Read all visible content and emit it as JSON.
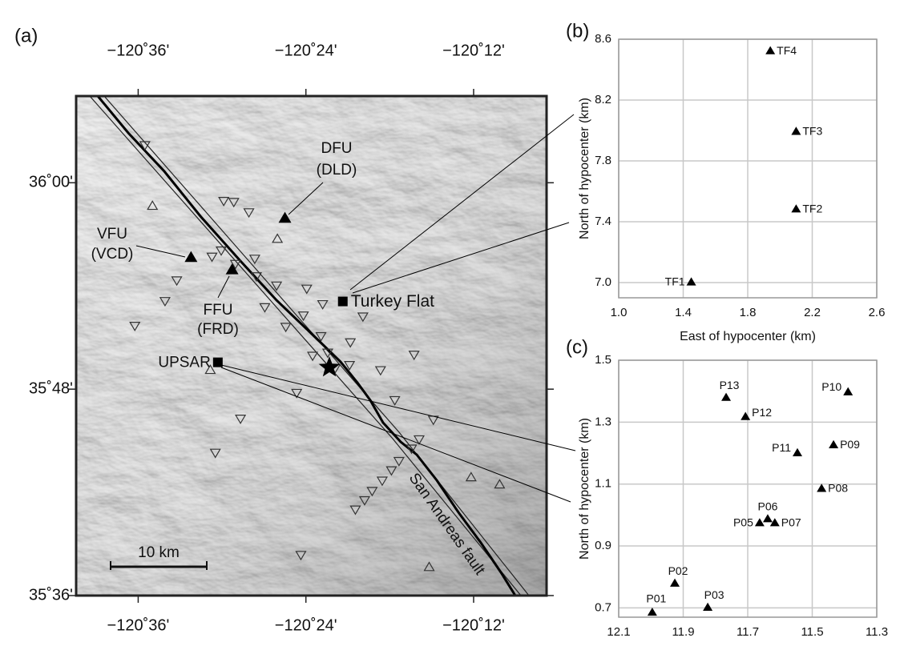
{
  "chart_data": [
    {
      "type": "map",
      "title": "(a)",
      "color": "#000000",
      "xlim": [
        -120.674,
        -120.113
      ],
      "ylim": [
        35.6,
        36.084
      ],
      "xticks": [
        {
          "value": -120.6,
          "label": "−120˚36'"
        },
        {
          "value": -120.4,
          "label": "−120˚24'"
        },
        {
          "value": -120.2,
          "label": "−120˚12'"
        }
      ],
      "yticks": [
        {
          "value": 36.0,
          "label": "36˚00'"
        },
        {
          "value": 35.8,
          "label": "35˚48'"
        },
        {
          "value": 35.6,
          "label": "35˚36'"
        }
      ],
      "stations": {
        "names": [
          "DFU",
          "VFU",
          "FFU"
        ],
        "codes": [
          "(DLD)",
          "(VCD)",
          "(FRD)"
        ],
        "x": [
          -120.425,
          -120.537,
          -120.488
        ],
        "y": [
          35.965,
          35.927,
          35.915
        ]
      },
      "sites": {
        "names": [
          "Turkey Flat",
          "UPSAR"
        ],
        "x": [
          -120.356,
          -120.505
        ],
        "y": [
          35.885,
          35.826
        ]
      },
      "epicenter": {
        "x": -120.372,
        "y": 35.821
      },
      "down_triangles": {
        "x": [
          -120.592,
          -120.498,
          -120.486,
          -120.468,
          -120.512,
          -120.501,
          -120.484,
          -120.461,
          -120.554,
          -120.568,
          -120.604,
          -120.459,
          -120.435,
          -120.399,
          -120.449,
          -120.424,
          -120.403,
          -120.38,
          -120.382,
          -120.374,
          -120.392,
          -120.347,
          -120.348,
          -120.332,
          -120.365,
          -120.311,
          -120.271,
          -120.294,
          -120.411,
          -120.478,
          -120.508,
          -120.248,
          -120.265,
          -120.274,
          -120.289,
          -120.298,
          -120.309,
          -120.321,
          -120.33,
          -120.341,
          -120.406
        ],
        "y": [
          36.037,
          35.983,
          35.982,
          35.972,
          35.929,
          35.935,
          35.922,
          35.927,
          35.906,
          35.886,
          35.862,
          35.91,
          35.901,
          35.898,
          35.88,
          35.861,
          35.872,
          35.883,
          35.852,
          35.836,
          35.833,
          35.846,
          35.824,
          35.871,
          35.821,
          35.819,
          35.834,
          35.79,
          35.797,
          35.772,
          35.739,
          35.771,
          35.752,
          35.743,
          35.731,
          35.722,
          35.712,
          35.702,
          35.693,
          35.684,
          35.64
        ]
      },
      "up_triangles": {
        "x": [
          -120.583,
          -120.434,
          -120.514,
          -120.253,
          -120.203,
          -120.169
        ],
        "y": [
          35.977,
          35.945,
          35.818,
          35.627,
          35.714,
          35.707
        ]
      },
      "fault_label": "San Andreas fault",
      "scale_bar": "10 km"
    },
    {
      "type": "scatter",
      "title": "(b)",
      "color": "#000000",
      "grid": true,
      "xlabel": "East of hypocenter (km)",
      "ylabel": "North of hypocenter (km)",
      "labels": [
        "TF1",
        "TF2",
        "TF3",
        "TF4"
      ],
      "x": [
        1.45,
        2.1,
        2.1,
        1.94
      ],
      "y": [
        7.0,
        7.48,
        7.99,
        8.52
      ],
      "xlim": [
        1.0,
        2.6
      ],
      "ylim": [
        6.9,
        8.6
      ],
      "xticks": [
        {
          "value": 1,
          "label": "1.0"
        },
        1.4,
        1.8,
        2.2,
        2.6
      ],
      "yticks": [
        {
          "value": 7,
          "label": "7.0"
        },
        7.4,
        7.8,
        8.2,
        8.6
      ]
    },
    {
      "type": "scatter",
      "title": "(c)",
      "color": "#000000",
      "grid": true,
      "ylabel": "North of hypocenter (km)",
      "labels": [
        "P01",
        "P02",
        "P03",
        "P05",
        "P06",
        "P07",
        "P08",
        "P09",
        "P10",
        "P11",
        "P12",
        "P13"
      ],
      "x": [
        11.996,
        11.926,
        11.824,
        11.663,
        11.638,
        11.616,
        11.471,
        11.434,
        11.389,
        11.546,
        11.707,
        11.767
      ],
      "y": [
        0.684,
        0.778,
        0.7,
        0.973,
        0.986,
        0.973,
        1.084,
        1.225,
        1.396,
        1.199,
        1.316,
        1.378
      ],
      "xlim": [
        12.1,
        11.3
      ],
      "ylim": [
        0.67,
        1.5
      ],
      "xticks": [
        12.1,
        11.9,
        11.7,
        11.5,
        11.3
      ],
      "yticks": [
        0.7,
        0.9,
        1.1,
        1.3,
        1.5
      ]
    }
  ]
}
